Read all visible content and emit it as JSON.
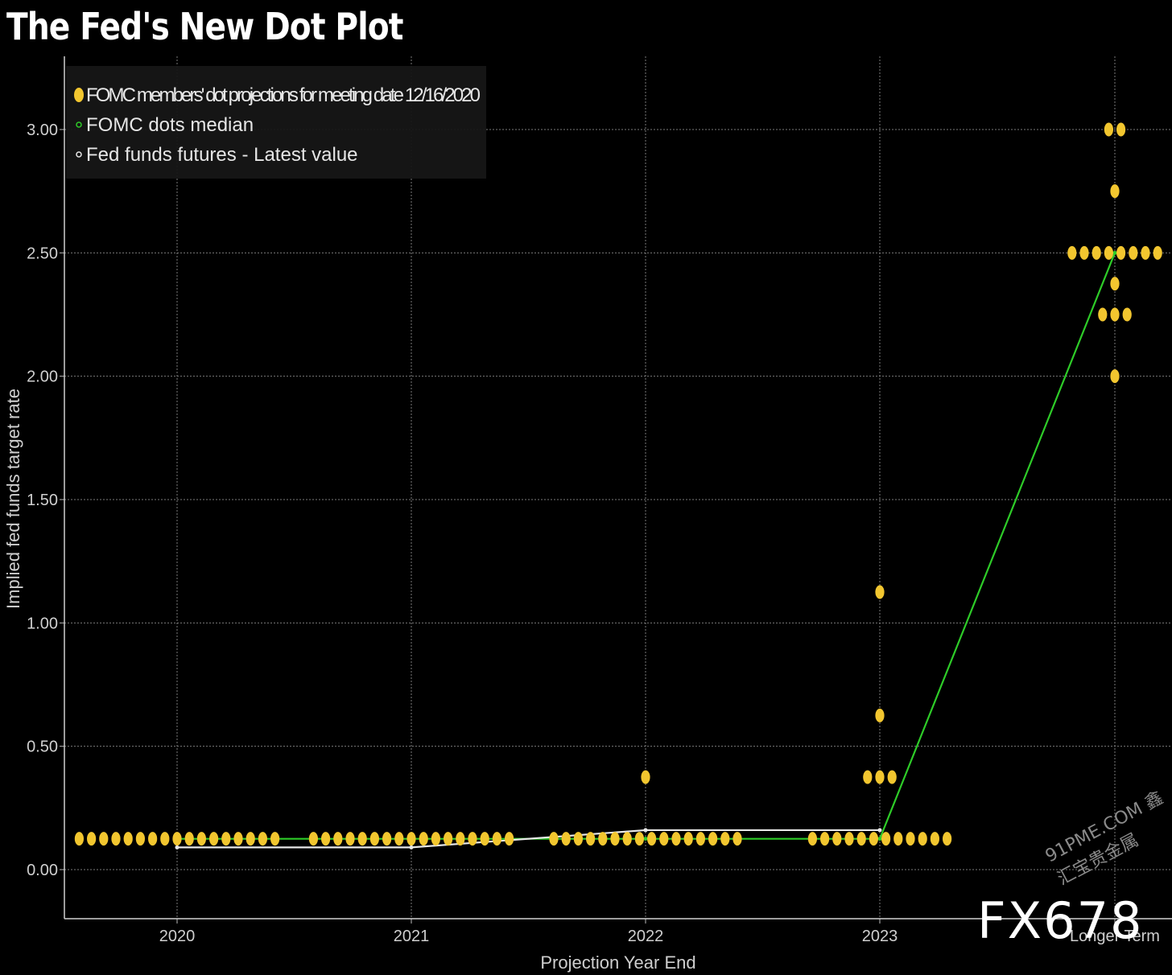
{
  "title": "The Fed's New Dot Plot",
  "colors": {
    "background": "#000000",
    "dots": "#f2c62f",
    "median": "#2ecc28",
    "futures": "#e8e8e8",
    "grid": "#7a7a7a"
  },
  "chart_data": {
    "type": "scatter",
    "xlabel": "Projection Year End",
    "ylabel": "Implied fed funds target rate",
    "categories": [
      "2020",
      "2021",
      "2022",
      "2023",
      "Longer Term"
    ],
    "y_ticks": [
      "0.00",
      "0.50",
      "1.00",
      "1.50",
      "2.00",
      "2.50",
      "3.00"
    ],
    "ylim": [
      -0.2,
      3.3
    ],
    "grid": true,
    "legend_position": "top-left",
    "series": [
      {
        "name": "FOMC members' dot projections for meeting date 12/16/2020",
        "kind": "dots",
        "points": [
          {
            "category": "2020",
            "groups": [
              {
                "y": 0.125,
                "count": 17
              }
            ]
          },
          {
            "category": "2021",
            "groups": [
              {
                "y": 0.125,
                "count": 17
              }
            ]
          },
          {
            "category": "2022",
            "groups": [
              {
                "y": 0.125,
                "count": 16
              },
              {
                "y": 0.375,
                "count": 1
              }
            ]
          },
          {
            "category": "2023",
            "groups": [
              {
                "y": 0.125,
                "count": 12
              },
              {
                "y": 0.375,
                "count": 3
              },
              {
                "y": 0.625,
                "count": 1
              },
              {
                "y": 1.125,
                "count": 1
              }
            ]
          },
          {
            "category": "Longer Term",
            "groups": [
              {
                "y": 2.0,
                "count": 1
              },
              {
                "y": 2.25,
                "count": 3
              },
              {
                "y": 2.375,
                "count": 1
              },
              {
                "y": 2.5,
                "count": 8
              },
              {
                "y": 2.75,
                "count": 1
              },
              {
                "y": 3.0,
                "count": 2
              }
            ]
          }
        ]
      },
      {
        "name": "FOMC dots median",
        "kind": "line",
        "x": [
          "2020",
          "2021",
          "2022",
          "2023",
          "Longer Term"
        ],
        "y": [
          0.125,
          0.125,
          0.125,
          0.125,
          2.5
        ]
      },
      {
        "name": "Fed funds futures - Latest value",
        "kind": "line",
        "x": [
          "2020",
          "2021",
          "2022",
          "2023"
        ],
        "y": [
          0.09,
          0.09,
          0.16,
          0.16
        ]
      }
    ]
  },
  "watermark": {
    "main": "FX678",
    "sub": "91PME.COM 鑫汇宝贵金属"
  }
}
